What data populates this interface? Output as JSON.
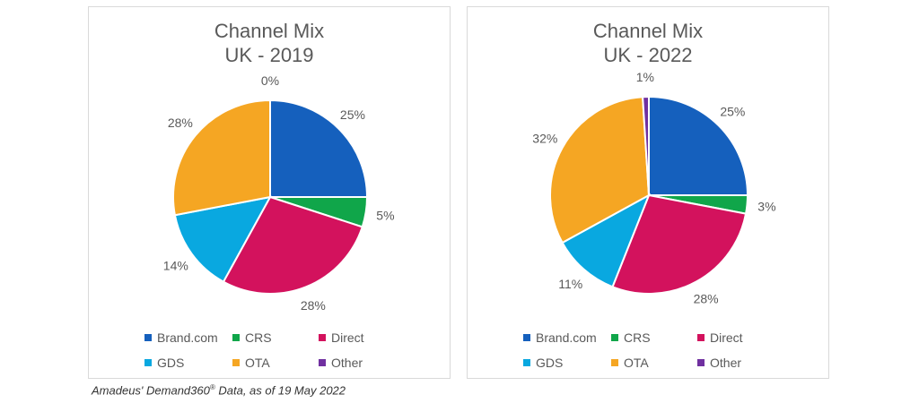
{
  "chart_data": [
    {
      "type": "pie",
      "title": "Channel Mix",
      "subtitle": "UK - 2019",
      "categories": [
        "Brand.com",
        "CRS",
        "Direct",
        "GDS",
        "OTA",
        "Other"
      ],
      "values": [
        25,
        5,
        28,
        14,
        28,
        0
      ],
      "labels": [
        "25%",
        "5%",
        "28%",
        "14%",
        "28%",
        "0%"
      ],
      "colors": [
        "#1560bd",
        "#10a64a",
        "#d3125d",
        "#09a8e0",
        "#f5a623",
        "#7030a0"
      ],
      "legend": "bottom"
    },
    {
      "type": "pie",
      "title": "Channel Mix",
      "subtitle": "UK - 2022",
      "categories": [
        "Brand.com",
        "CRS",
        "Direct",
        "GDS",
        "OTA",
        "Other"
      ],
      "values": [
        25,
        3,
        28,
        11,
        32,
        1
      ],
      "labels": [
        "25%",
        "3%",
        "28%",
        "11%",
        "32%",
        "1%"
      ],
      "colors": [
        "#1560bd",
        "#10a64a",
        "#d3125d",
        "#09a8e0",
        "#f5a623",
        "#7030a0"
      ],
      "legend": "bottom"
    }
  ],
  "caption": {
    "prefix": "Amadeus' Demand360",
    "sup": "®",
    "suffix": " Data, as of 19 May 2022"
  }
}
